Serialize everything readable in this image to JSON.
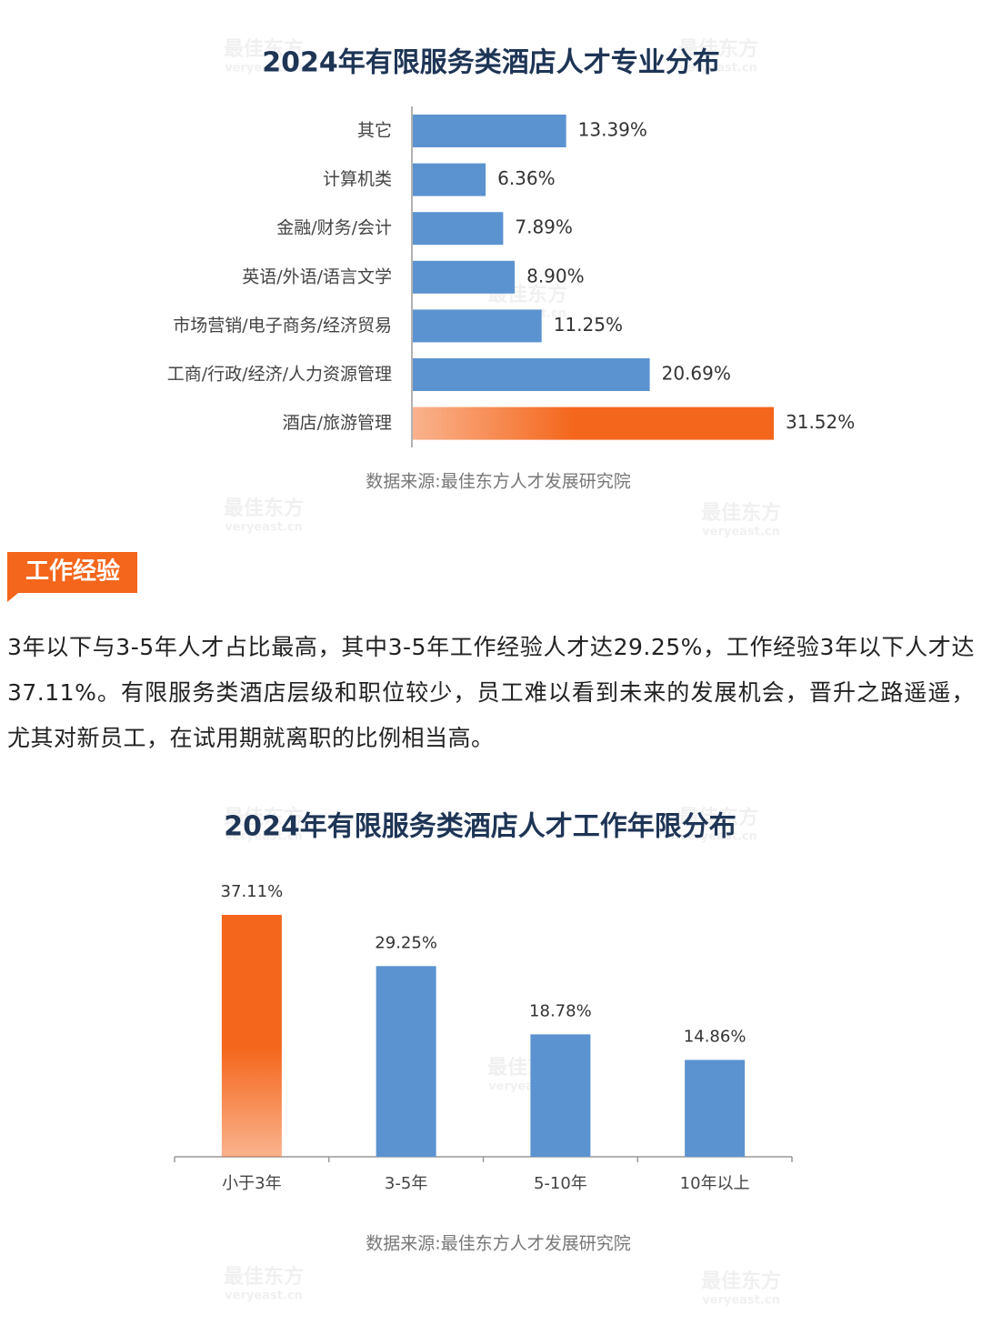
{
  "chart_data": [
    {
      "type": "hbar",
      "title": "2024年有限服务类酒店人才专业分布",
      "categories": [
        "其它",
        "计算机类",
        "金融/财务/会计",
        "英语/外语/语言文学",
        "市场营销/电子商务/经济贸易",
        "工商/行政/经济/人力资源管理",
        "酒店/旅游管理"
      ],
      "values": [
        13.39,
        6.36,
        7.89,
        8.9,
        11.25,
        20.69,
        31.52
      ],
      "value_labels": [
        "13.39%",
        "6.36%",
        "7.89%",
        "8.90%",
        "11.25%",
        "20.69%",
        "31.52%"
      ],
      "colors": [
        "#5b93d0",
        "#5b93d0",
        "#5b93d0",
        "#5b93d0",
        "#5b93d0",
        "#5b93d0",
        "#f4661b"
      ],
      "source": "数据来源:最佳东方人才发展研究院"
    },
    {
      "type": "bar",
      "title": "2024年有限服务类酒店人才工作年限分布",
      "categories": [
        "小于3年",
        "3-5年",
        "5-10年",
        "10年以上"
      ],
      "values": [
        37.11,
        29.25,
        18.78,
        14.86
      ],
      "value_labels": [
        "37.11%",
        "29.25%",
        "18.78%",
        "14.86%"
      ],
      "colors": [
        "#f4661b",
        "#5b93d0",
        "#5b93d0",
        "#5b93d0"
      ],
      "source": "数据来源:最佳东方人才发展研究院"
    }
  ],
  "section": {
    "title": "工作经验",
    "body": "3年以下与3-5年人才占比最高，其中3-5年工作经验人才达29.25%，工作经验3年以下人才达37.11%。有限服务类酒店层级和职位较少，员工难以看到未来的发展机会，晋升之路遥遥，尤其对新员工，在试用期就离职的比例相当高。"
  },
  "watermark": {
    "name": "最佳东方",
    "url": "veryeast.cn"
  }
}
